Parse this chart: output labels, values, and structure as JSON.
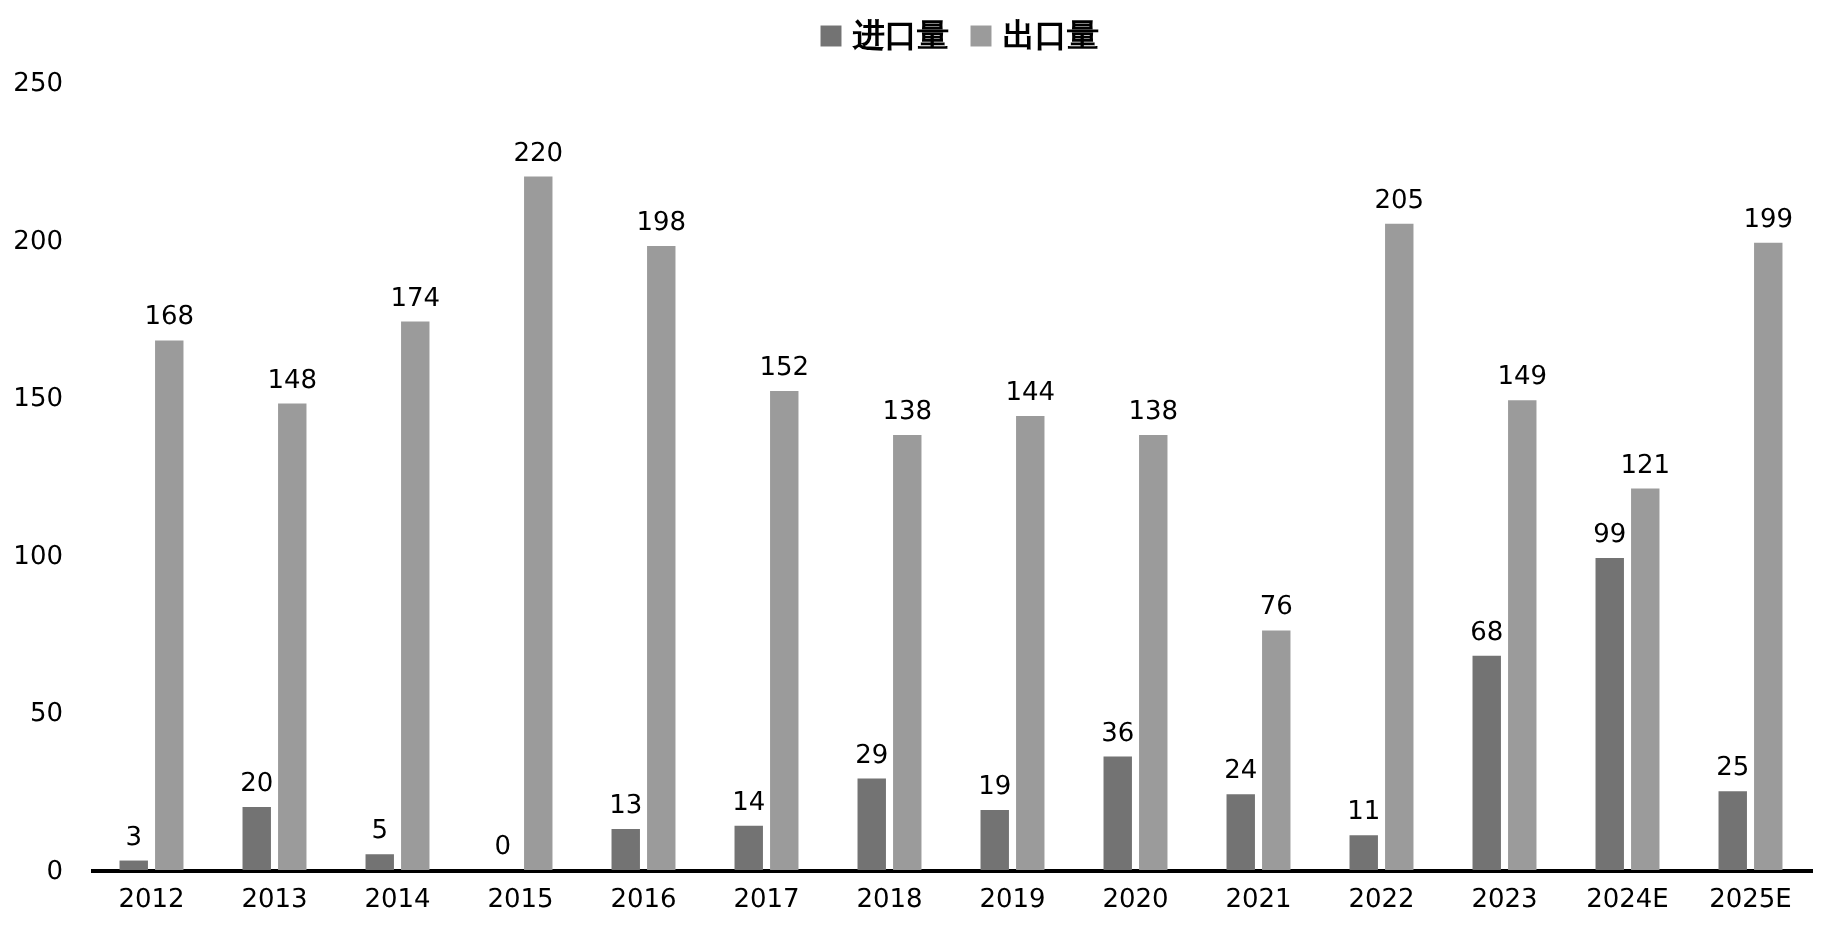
{
  "chart_data": {
    "type": "bar",
    "categories": [
      "2012",
      "2013",
      "2014",
      "2015",
      "2016",
      "2017",
      "2018",
      "2019",
      "2020",
      "2021",
      "2022",
      "2023",
      "2024E",
      "2025E"
    ],
    "series": [
      {
        "name": "进口量",
        "color": "#737373",
        "values": [
          3,
          20,
          5,
          0,
          13,
          14,
          29,
          19,
          36,
          24,
          11,
          68,
          99,
          25
        ]
      },
      {
        "name": "出口量",
        "color": "#9b9b9b",
        "values": [
          168,
          148,
          174,
          220,
          198,
          152,
          138,
          144,
          138,
          76,
          205,
          149,
          121,
          199
        ]
      }
    ],
    "ylim": [
      0,
      250
    ],
    "yticks": [
      0,
      50,
      100,
      150,
      200,
      250
    ],
    "data_labels": true,
    "legend": "top",
    "grid": false
  }
}
